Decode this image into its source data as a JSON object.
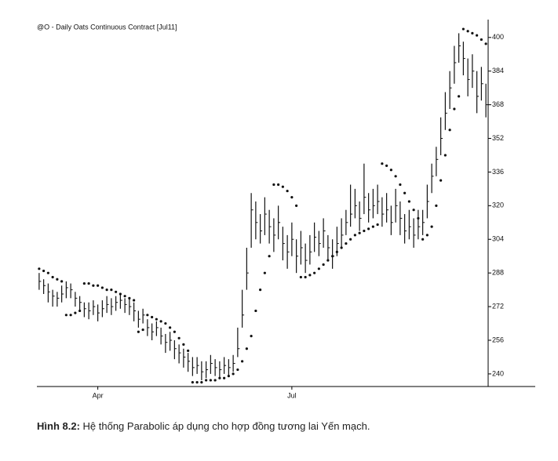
{
  "chart_data": {
    "type": "ohlc",
    "title": "@O - Daily  Oats Continuous Contract [Jul11]",
    "caption_label": "Hình 8.2:",
    "caption_text": " Hệ thống Parabolic áp dụng cho hợp đồng tương lai Yến mạch.",
    "categories": [
      null,
      null,
      null,
      null,
      null,
      null,
      null,
      null,
      null,
      null,
      null,
      null,
      null,
      "Apr",
      null,
      null,
      null,
      null,
      null,
      null,
      null,
      null,
      null,
      null,
      null,
      null,
      null,
      null,
      null,
      null,
      null,
      null,
      null,
      null,
      null,
      null,
      null,
      null,
      null,
      null,
      null,
      null,
      null,
      null,
      null,
      null,
      null,
      null,
      null,
      null,
      null,
      null,
      null,
      null,
      null,
      null,
      "Jul",
      null,
      null,
      null,
      null,
      null,
      null,
      null,
      null,
      null,
      null,
      null,
      null,
      null,
      null,
      null,
      null,
      null,
      null,
      null,
      null,
      null,
      null,
      null,
      null,
      null,
      null,
      null,
      null,
      null,
      null,
      null,
      null,
      null,
      null,
      null,
      null,
      null,
      null,
      null,
      null,
      null,
      null,
      null
    ],
    "high": [
      288,
      285,
      283,
      280,
      279,
      282,
      284,
      283,
      279,
      277,
      274,
      274,
      275,
      273,
      275,
      277,
      276,
      277,
      278,
      276,
      276,
      274,
      270,
      271,
      266,
      264,
      265,
      262,
      259,
      260,
      256,
      254,
      252,
      250,
      248,
      248,
      246,
      246,
      249,
      247,
      246,
      248,
      247,
      249,
      262,
      280,
      300,
      326,
      322,
      316,
      324,
      318,
      314,
      320,
      310,
      306,
      312,
      304,
      308,
      302,
      306,
      312,
      308,
      314,
      306,
      304,
      310,
      314,
      318,
      330,
      328,
      322,
      340,
      326,
      328,
      330,
      324,
      326,
      320,
      328,
      322,
      316,
      318,
      314,
      318,
      318,
      330,
      340,
      348,
      362,
      374,
      384,
      396,
      402,
      398,
      390,
      392,
      384,
      386,
      378
    ],
    "low": [
      280,
      278,
      274,
      272,
      272,
      274,
      276,
      276,
      272,
      270,
      267,
      266,
      268,
      265,
      267,
      269,
      268,
      270,
      271,
      269,
      268,
      265,
      262,
      264,
      258,
      256,
      258,
      254,
      250,
      251,
      247,
      245,
      243,
      241,
      239,
      240,
      237,
      238,
      240,
      239,
      238,
      240,
      239,
      241,
      248,
      262,
      280,
      300,
      304,
      302,
      306,
      302,
      298,
      304,
      294,
      290,
      296,
      288,
      292,
      288,
      292,
      298,
      296,
      300,
      294,
      290,
      296,
      300,
      306,
      310,
      314,
      308,
      316,
      312,
      314,
      316,
      310,
      312,
      306,
      312,
      306,
      302,
      304,
      300,
      304,
      306,
      314,
      326,
      334,
      344,
      356,
      366,
      378,
      388,
      382,
      372,
      376,
      364,
      370,
      362
    ],
    "close": [
      284,
      282,
      279,
      277,
      276,
      278,
      281,
      280,
      276,
      274,
      271,
      270,
      272,
      269,
      271,
      273,
      272,
      274,
      275,
      273,
      272,
      270,
      266,
      268,
      262,
      260,
      262,
      258,
      255,
      256,
      252,
      250,
      248,
      246,
      243,
      244,
      241,
      242,
      245,
      243,
      242,
      244,
      243,
      245,
      252,
      268,
      288,
      318,
      312,
      308,
      316,
      310,
      306,
      312,
      302,
      298,
      304,
      296,
      300,
      294,
      298,
      305,
      302,
      308,
      300,
      296,
      302,
      306,
      312,
      316,
      320,
      314,
      324,
      318,
      320,
      322,
      316,
      318,
      312,
      320,
      314,
      308,
      310,
      306,
      310,
      312,
      322,
      334,
      342,
      352,
      364,
      376,
      388,
      396,
      390,
      380,
      384,
      372,
      378,
      368
    ],
    "sar": [
      290,
      289,
      288,
      286,
      285,
      284,
      268,
      268,
      269,
      270,
      283,
      283,
      282,
      282,
      281,
      280,
      280,
      279,
      278,
      277,
      276,
      275,
      260,
      261,
      268,
      267,
      266,
      265,
      264,
      262,
      260,
      257,
      254,
      251,
      236,
      236,
      236,
      237,
      237,
      237,
      238,
      238,
      239,
      240,
      242,
      246,
      252,
      258,
      270,
      280,
      288,
      296,
      330,
      330,
      329,
      327,
      324,
      320,
      286,
      286,
      287,
      288,
      290,
      292,
      294,
      296,
      298,
      300,
      302,
      304,
      306,
      307,
      308,
      309,
      310,
      311,
      340,
      339,
      337,
      334,
      330,
      326,
      322,
      318,
      314,
      304,
      306,
      310,
      320,
      332,
      344,
      356,
      366,
      372,
      404,
      403,
      402,
      401,
      399,
      397
    ],
    "color": "#111111",
    "ylim": [
      234,
      407
    ],
    "yticks": [
      240,
      256,
      272,
      288,
      304,
      320,
      336,
      352,
      368,
      384,
      400
    ]
  }
}
